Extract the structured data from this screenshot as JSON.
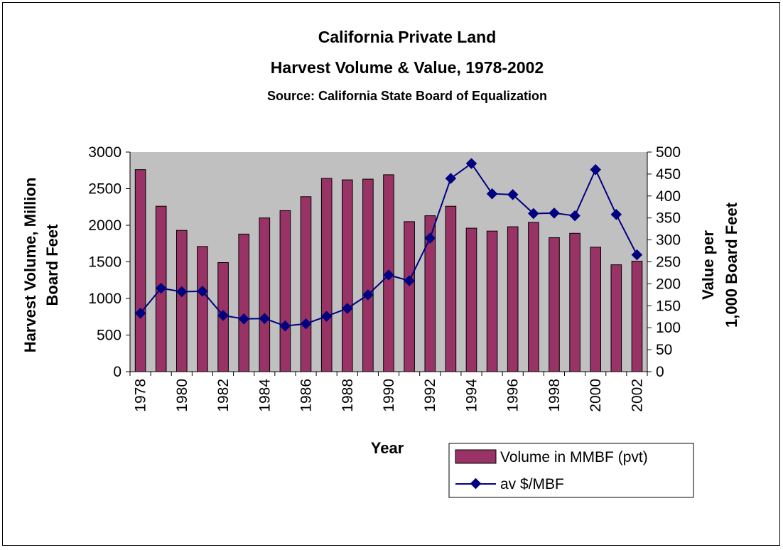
{
  "chart_data": {
    "type": "bar",
    "title": "California Private Land",
    "title_line2": "Harvest Volume & Value, 1978-2002",
    "subtitle": "Source: California State Board of Equalization",
    "xlabel": "Year",
    "ylabel_left_line1": "Harvest Volume, Million",
    "ylabel_left_line2": "Board Feet",
    "ylabel_right_line1": "Value per",
    "ylabel_right_line2": "1,000 Board Feet",
    "categories": [
      "1978",
      "1979",
      "1980",
      "1981",
      "1982",
      "1983",
      "1984",
      "1985",
      "1986",
      "1987",
      "1988",
      "1989",
      "1990",
      "1991",
      "1992",
      "1993",
      "1994",
      "1995",
      "1996",
      "1997",
      "1998",
      "1999",
      "2000",
      "2001",
      "2002"
    ],
    "x_tick_labels": [
      "1978",
      "1980",
      "1982",
      "1984",
      "1986",
      "1988",
      "1990",
      "1992",
      "1994",
      "1996",
      "1998",
      "2000",
      "2002"
    ],
    "ylim_left": [
      0,
      3000
    ],
    "yticks_left": [
      "0",
      "500",
      "1000",
      "1500",
      "2000",
      "2500",
      "3000"
    ],
    "ylim_right": [
      0,
      500
    ],
    "yticks_right": [
      "0",
      "50",
      "100",
      "150",
      "200",
      "250",
      "300",
      "350",
      "400",
      "450",
      "500"
    ],
    "grid": false,
    "plot_background": "#c0c0c0",
    "legend_position": "bottom-right",
    "series": [
      {
        "name": "Volume in MMBF (pvt)",
        "kind": "bar",
        "axis": "left",
        "color": "#993366",
        "values": [
          2760,
          2260,
          1930,
          1710,
          1490,
          1880,
          2100,
          2200,
          2390,
          2640,
          2620,
          2630,
          2690,
          2050,
          2130,
          2260,
          1960,
          1920,
          1980,
          2040,
          1830,
          1890,
          1700,
          1460,
          1510
        ]
      },
      {
        "name": "av $/MBF",
        "kind": "line",
        "axis": "right",
        "color": "#000080",
        "values": [
          133,
          190,
          182,
          183,
          128,
          120,
          121,
          104,
          109,
          126,
          144,
          175,
          220,
          207,
          304,
          440,
          474,
          405,
          403,
          360,
          361,
          355,
          460,
          358,
          266
        ]
      }
    ]
  }
}
